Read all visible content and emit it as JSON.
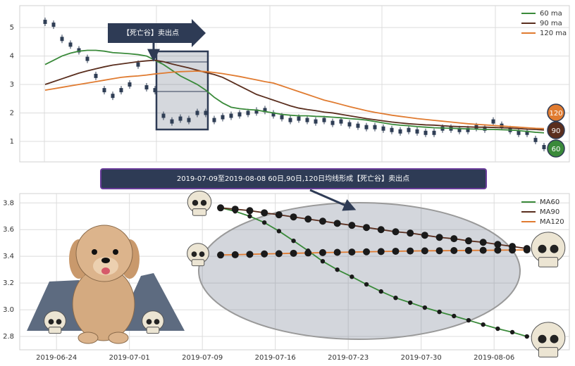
{
  "chart_data": [
    {
      "type": "line",
      "annotation": "【死亡谷】卖出点",
      "values": [
        5.2,
        5.1,
        4.6,
        4.4,
        4.2,
        3.9,
        3.3,
        2.8,
        2.6,
        2.8,
        3.0,
        3.7,
        2.9,
        2.8,
        1.9,
        1.7,
        1.8,
        1.75,
        2.0,
        2.0,
        1.75,
        1.85,
        1.9,
        1.95,
        2.0,
        2.05,
        2.1,
        1.95,
        1.85,
        1.75,
        1.8,
        1.75,
        1.7,
        1.75,
        1.65,
        1.7,
        1.6,
        1.55,
        1.5,
        1.5,
        1.45,
        1.4,
        1.35,
        1.4,
        1.35,
        1.3,
        1.3,
        1.45,
        1.45,
        1.4,
        1.4,
        1.5,
        1.45,
        1.7,
        1.55,
        1.4,
        1.3,
        1.3,
        1.05,
        0.8
      ],
      "color": "#2f3e55",
      "series": [
        {
          "name": "60 ma",
          "badge": "60",
          "color": "#3a8a3a",
          "values": [
            3.7,
            3.85,
            4.0,
            4.1,
            4.17,
            4.2,
            4.2,
            4.17,
            4.12,
            4.1,
            4.08,
            4.05,
            4.0,
            3.85,
            3.7,
            3.5,
            3.3,
            3.15,
            3.0,
            2.8,
            2.55,
            2.35,
            2.2,
            2.15,
            2.12,
            2.1,
            2.05,
            2.0,
            1.95,
            1.92,
            1.9,
            1.9,
            1.88,
            1.87,
            1.85,
            1.83,
            1.8,
            1.78,
            1.75,
            1.7,
            1.65,
            1.6,
            1.57,
            1.55,
            1.52,
            1.5,
            1.48,
            1.47,
            1.46,
            1.45,
            1.44,
            1.43,
            1.42,
            1.42,
            1.41,
            1.4,
            1.38,
            1.35,
            1.32,
            1.3
          ]
        },
        {
          "name": "90 ma",
          "badge": "90",
          "color": "#5a2e1e",
          "values": [
            3.0,
            3.1,
            3.2,
            3.3,
            3.4,
            3.48,
            3.55,
            3.62,
            3.68,
            3.72,
            3.76,
            3.8,
            3.83,
            3.85,
            3.8,
            3.72,
            3.65,
            3.58,
            3.5,
            3.42,
            3.35,
            3.25,
            3.1,
            2.95,
            2.8,
            2.65,
            2.55,
            2.45,
            2.35,
            2.25,
            2.17,
            2.12,
            2.08,
            2.03,
            2.0,
            1.95,
            1.9,
            1.85,
            1.8,
            1.76,
            1.72,
            1.68,
            1.65,
            1.62,
            1.6,
            1.58,
            1.57,
            1.55,
            1.53,
            1.52,
            1.51,
            1.5,
            1.5,
            1.49,
            1.48,
            1.47,
            1.45,
            1.43,
            1.42,
            1.4
          ]
        },
        {
          "name": "120 ma",
          "badge": "120",
          "color": "#e07b30",
          "values": [
            2.8,
            2.85,
            2.9,
            2.95,
            3.0,
            3.05,
            3.1,
            3.15,
            3.2,
            3.25,
            3.28,
            3.3,
            3.33,
            3.37,
            3.4,
            3.43,
            3.45,
            3.46,
            3.47,
            3.45,
            3.42,
            3.38,
            3.33,
            3.28,
            3.22,
            3.16,
            3.1,
            3.05,
            2.95,
            2.85,
            2.75,
            2.65,
            2.55,
            2.45,
            2.38,
            2.3,
            2.22,
            2.15,
            2.08,
            2.02,
            1.97,
            1.92,
            1.88,
            1.84,
            1.8,
            1.77,
            1.74,
            1.71,
            1.68,
            1.65,
            1.62,
            1.6,
            1.58,
            1.56,
            1.54,
            1.52,
            1.5,
            1.48,
            1.46,
            1.45
          ]
        }
      ],
      "ylim": [
        0.28,
        5.77
      ],
      "yticks": [
        1,
        2,
        3,
        4,
        5
      ],
      "grid": true,
      "legend": "upper right"
    },
    {
      "type": "line",
      "title": "2019-07-09至2019-08-08 60日,90日,120日均线形成【死亡谷】卖出点",
      "x": [
        0,
        1,
        2,
        3,
        4,
        5,
        6,
        7,
        8,
        9,
        10,
        11,
        12,
        13,
        14,
        15,
        16,
        17,
        18,
        19,
        20,
        21
      ],
      "series": [
        {
          "name": "MA60",
          "color": "#3a8a3a",
          "values": [
            3.763,
            3.737,
            3.7,
            3.653,
            3.589,
            3.516,
            3.442,
            3.363,
            3.3,
            3.247,
            3.19,
            3.137,
            3.089,
            3.053,
            3.016,
            2.984,
            2.953,
            2.921,
            2.889,
            2.858,
            2.832,
            2.8
          ]
        },
        {
          "name": "MA90",
          "color": "#5a2e1e",
          "values": [
            3.763,
            3.753,
            3.742,
            3.726,
            3.711,
            3.695,
            3.679,
            3.663,
            3.647,
            3.632,
            3.616,
            3.6,
            3.584,
            3.574,
            3.558,
            3.542,
            3.532,
            3.516,
            3.505,
            3.489,
            3.474,
            3.458
          ]
        },
        {
          "name": "MA120",
          "color": "#e07b30",
          "values": [
            3.41,
            3.412,
            3.415,
            3.418,
            3.42,
            3.423,
            3.425,
            3.428,
            3.43,
            3.432,
            3.434,
            3.436,
            3.438,
            3.44,
            3.441,
            3.442,
            3.443,
            3.444,
            3.445,
            3.446,
            3.447,
            3.448
          ]
        }
      ],
      "xlim": [
        -13.77,
        23.91
      ],
      "xticks": [
        {
          "value": -11.25,
          "label": "2019-06-24"
        },
        {
          "value": -6.25,
          "label": "2019-07-01"
        },
        {
          "value": -1.25,
          "label": "2019-07-09"
        },
        {
          "value": 3.75,
          "label": "2019-07-16"
        },
        {
          "value": 8.75,
          "label": "2019-07-23"
        },
        {
          "value": 13.75,
          "label": "2019-07-30"
        },
        {
          "value": 18.75,
          "label": "2019-08-06"
        }
      ],
      "ylim": [
        2.7,
        3.87
      ],
      "yticks": [
        {
          "value": 2.8,
          "label": "2.8"
        },
        {
          "value": 3.0,
          "label": "3.0"
        },
        {
          "value": 3.2,
          "label": "3.2"
        },
        {
          "value": 3.4,
          "label": "3.4"
        },
        {
          "value": 3.6,
          "label": "3.6"
        },
        {
          "value": 3.8,
          "label": "3.8"
        }
      ],
      "grid": true,
      "legend": "upper right"
    }
  ]
}
